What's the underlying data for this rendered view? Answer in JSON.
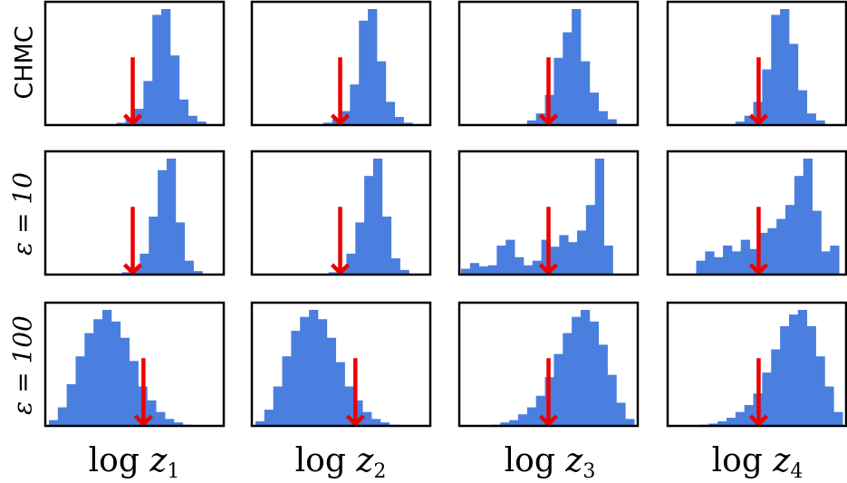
{
  "chart_data": {
    "type": "histogram-grid",
    "rows": [
      {
        "label": "CHMC"
      },
      {
        "label": "ε = 10"
      },
      {
        "label": "ε = 100"
      }
    ],
    "columns": [
      {
        "label_prefix": "log",
        "var": "z",
        "sub": "1"
      },
      {
        "label_prefix": "log",
        "var": "z",
        "sub": "2"
      },
      {
        "label_prefix": "log",
        "var": "z",
        "sub": "3"
      },
      {
        "label_prefix": "log",
        "var": "z",
        "sub": "4"
      }
    ],
    "colors": {
      "histogram": "#4a7fdf",
      "true_value_arrow": "#ee0000",
      "frame": "#000000"
    },
    "true_value_arrow_height": 0.55,
    "panels": [
      [
        {
          "row": 0,
          "col": 0,
          "start": 0.4,
          "width": 0.05,
          "values": [
            2,
            6,
            14,
            38,
            95,
            100,
            60,
            22,
            8,
            3
          ],
          "true_x": 0.49
        },
        {
          "row": 0,
          "col": 1,
          "start": 0.4,
          "width": 0.05,
          "values": [
            2,
            5,
            12,
            35,
            90,
            100,
            55,
            20,
            7,
            2
          ],
          "true_x": 0.495
        },
        {
          "row": 0,
          "col": 2,
          "start": 0.38,
          "width": 0.05,
          "values": [
            4,
            10,
            26,
            58,
            80,
            100,
            55,
            28,
            12,
            5
          ],
          "true_x": 0.5
        },
        {
          "row": 0,
          "col": 3,
          "start": 0.38,
          "width": 0.05,
          "values": [
            3,
            8,
            20,
            48,
            95,
            100,
            70,
            30,
            10,
            4
          ],
          "true_x": 0.51
        }
      ],
      [
        {
          "row": 1,
          "col": 0,
          "start": 0.43,
          "width": 0.05,
          "values": [
            2,
            6,
            18,
            50,
            90,
            100,
            45,
            12,
            3
          ],
          "true_x": 0.49
        },
        {
          "row": 1,
          "col": 1,
          "start": 0.43,
          "width": 0.05,
          "values": [
            2,
            6,
            18,
            45,
            85,
            100,
            50,
            14,
            4
          ],
          "true_x": 0.495
        },
        {
          "row": 1,
          "col": 2,
          "start": 0.01,
          "width": 0.05,
          "values": [
            5,
            10,
            7,
            8,
            25,
            30,
            15,
            8,
            12,
            30,
            24,
            34,
            28,
            38,
            60,
            100,
            25
          ],
          "true_x": 0.5
        },
        {
          "row": 1,
          "col": 3,
          "start": 0.16,
          "width": 0.05,
          "values": [
            12,
            20,
            15,
            25,
            20,
            30,
            22,
            36,
            40,
            48,
            60,
            85,
            100,
            55,
            20,
            25
          ],
          "true_x": 0.51
        }
      ],
      [
        {
          "row": 2,
          "col": 0,
          "start": 0.02,
          "width": 0.05,
          "values": [
            5,
            16,
            36,
            60,
            80,
            92,
            100,
            90,
            76,
            56,
            34,
            22,
            12,
            6,
            3,
            1
          ],
          "true_x": 0.55
        },
        {
          "row": 2,
          "col": 1,
          "start": 0.02,
          "width": 0.05,
          "values": [
            4,
            14,
            34,
            60,
            82,
            94,
            100,
            92,
            76,
            55,
            34,
            22,
            12,
            6,
            3,
            1
          ],
          "true_x": 0.58
        },
        {
          "row": 2,
          "col": 2,
          "start": 0.18,
          "width": 0.05,
          "values": [
            1,
            3,
            5,
            10,
            16,
            26,
            42,
            62,
            80,
            94,
            100,
            90,
            70,
            44,
            20,
            6
          ],
          "true_x": 0.5
        },
        {
          "row": 2,
          "col": 3,
          "start": 0.18,
          "width": 0.05,
          "values": [
            1,
            2,
            4,
            7,
            12,
            18,
            28,
            46,
            66,
            86,
            96,
            100,
            86,
            60,
            34,
            12
          ],
          "true_x": 0.51
        }
      ]
    ]
  }
}
